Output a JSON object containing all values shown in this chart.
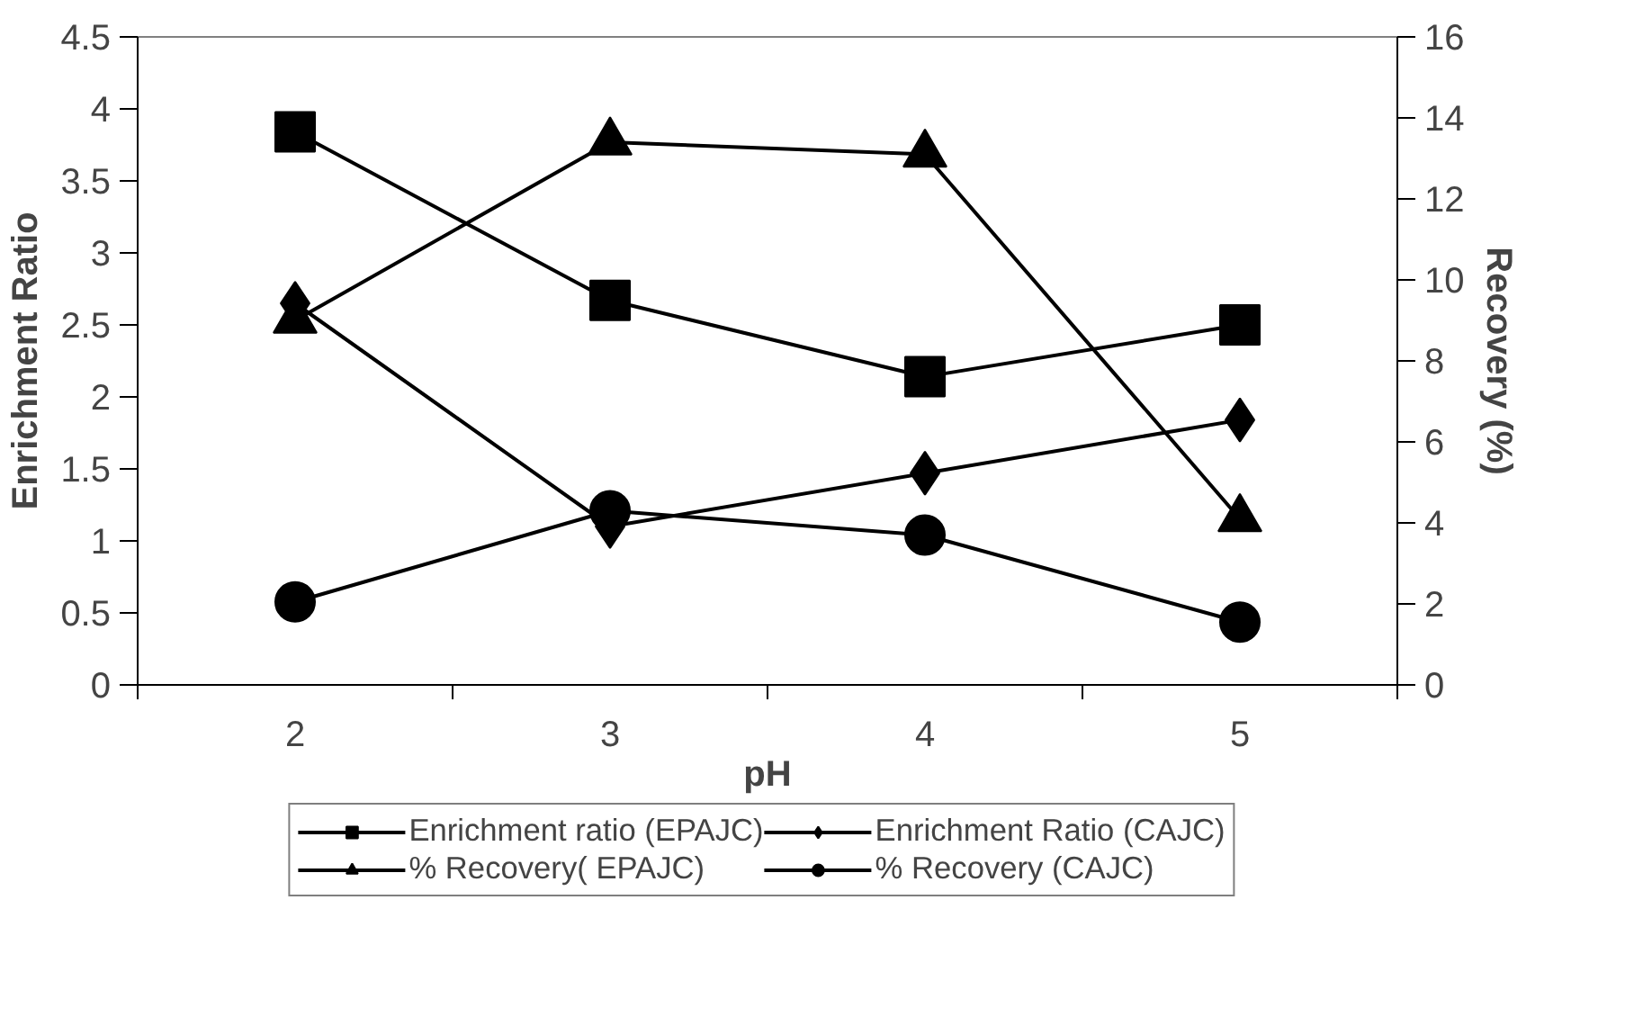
{
  "chart_data": {
    "type": "line",
    "xlabel": "pH",
    "ylabel": "Enrichment Ratio",
    "y2label": "Recovery (%)",
    "categories": [
      "2",
      "3",
      "4",
      "5"
    ],
    "series": [
      {
        "name": "Enrichment ratio (EPAJC)",
        "color": "#000000",
        "marker": "square",
        "values": [
          3.84,
          2.67,
          2.14,
          2.5
        ]
      },
      {
        "name": "Enrichment Ratio (CAJC)",
        "color": "#000000",
        "marker": "diamond",
        "values": [
          2.65,
          1.1,
          1.47,
          1.84
        ]
      },
      {
        "name": "% Recovery( EPAJC)",
        "color": "#000000",
        "marker": "triangle",
        "axis": "y2",
        "values": [
          9.0,
          13.4,
          13.1,
          4.1
        ]
      },
      {
        "name": "% Recovery (CAJC)",
        "color": "#000000",
        "marker": "circle",
        "axis": "y2",
        "values": [
          2.05,
          4.3,
          3.7,
          1.55
        ]
      }
    ],
    "ylim": [
      0,
      4.5
    ],
    "yticks": [
      0,
      0.5,
      1,
      1.5,
      2,
      2.5,
      3,
      3.5,
      4,
      4.5
    ],
    "y2lim": [
      0,
      16
    ],
    "y2ticks": [
      0,
      2,
      4,
      6,
      8,
      10,
      12,
      14,
      16
    ],
    "grid": false,
    "legend": "bottom",
    "line_style": "solid"
  }
}
